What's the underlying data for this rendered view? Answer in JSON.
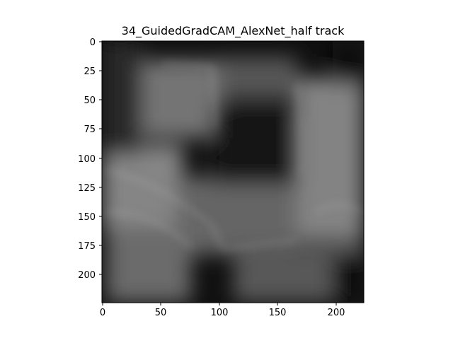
{
  "figure": {
    "title": "34_GuidedGradCAM_AlexNet_half track"
  },
  "axes": {
    "x": {
      "ticks": [
        "0",
        "50",
        "100",
        "150",
        "200"
      ],
      "range": [
        0,
        224
      ]
    },
    "y": {
      "ticks": [
        "0",
        "25",
        "50",
        "75",
        "100",
        "125",
        "150",
        "175",
        "200"
      ],
      "range": [
        0,
        224
      ]
    }
  },
  "image": {
    "description_colors": {
      "background": "#111111",
      "mid": "#666666",
      "highlight": "#9a9a9a"
    },
    "pixel_size": [
      224,
      224
    ]
  }
}
